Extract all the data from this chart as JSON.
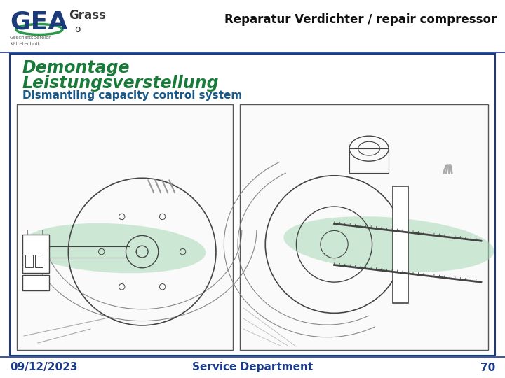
{
  "bg_color": "#ffffff",
  "border_color": "#1a3a8a",
  "title_line1": "Demontage",
  "title_line2": "Leistungsverstellung",
  "subtitle": "Dismantling capacity control system",
  "title_color": "#1a7a3a",
  "subtitle_color": "#1a5a8a",
  "header_title": "Reparatur Verdichter / repair compressor",
  "header_title_color": "#111111",
  "footer_date": "09/12/2023",
  "footer_dept": "Service Department",
  "footer_page": "70",
  "footer_color": "#1a3a8a",
  "gea_color": "#1a3a7a",
  "green_color": "#2a9a4a",
  "grass_text": "Grass",
  "grass_o": "o",
  "small_text1": "Geschäftsbereich",
  "small_text2": "Kältetechnik",
  "img_border": "#555555",
  "green_fill": "#a8d8b8",
  "line_color": "#444444",
  "title_fontsize": 17,
  "subtitle_fontsize": 11,
  "header_fontsize": 12,
  "footer_fontsize": 11
}
